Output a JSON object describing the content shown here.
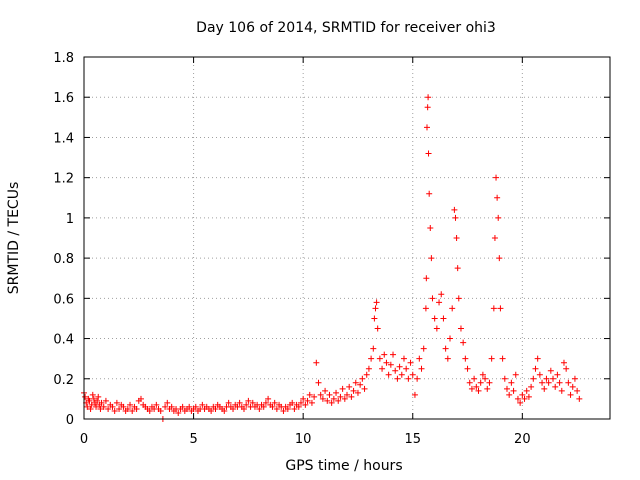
{
  "chart_data": {
    "type": "scatter",
    "title": "Day 106 of 2014, SRMTID for receiver ohi3",
    "xlabel": "GPS time / hours",
    "ylabel": "SRMTID / TECUs",
    "xlim": [
      0,
      24
    ],
    "ylim": [
      0,
      1.8
    ],
    "xticks": [
      0,
      5,
      10,
      15,
      20
    ],
    "xtick_labels": [
      "0",
      "5",
      "10",
      "15",
      "20"
    ],
    "yticks": [
      0,
      0.2,
      0.4,
      0.6,
      0.8,
      1.0,
      1.2,
      1.4,
      1.6,
      1.8
    ],
    "ytick_labels": [
      "0",
      "0.2",
      "0.4",
      "0.6",
      "0.8",
      "1",
      "1.2",
      "1.4",
      "1.6",
      "1.8"
    ],
    "grid": true,
    "marker": "+",
    "series": [
      {
        "name": "SRMTID",
        "color": "#ff0000",
        "points": [
          [
            0.0,
            0.13
          ],
          [
            0.05,
            0.11
          ],
          [
            0.1,
            0.08
          ],
          [
            0.15,
            0.06
          ],
          [
            0.2,
            0.1
          ],
          [
            0.25,
            0.09
          ],
          [
            0.3,
            0.05
          ],
          [
            0.35,
            0.07
          ],
          [
            0.4,
            0.12
          ],
          [
            0.45,
            0.1
          ],
          [
            0.5,
            0.08
          ],
          [
            0.55,
            0.06
          ],
          [
            0.6,
            0.09
          ],
          [
            0.65,
            0.11
          ],
          [
            0.7,
            0.07
          ],
          [
            0.75,
            0.05
          ],
          [
            0.8,
            0.08
          ],
          [
            0.9,
            0.06
          ],
          [
            1.0,
            0.09
          ],
          [
            1.1,
            0.05
          ],
          [
            1.2,
            0.07
          ],
          [
            1.3,
            0.06
          ],
          [
            1.4,
            0.04
          ],
          [
            1.5,
            0.08
          ],
          [
            1.6,
            0.05
          ],
          [
            1.7,
            0.07
          ],
          [
            1.8,
            0.06
          ],
          [
            1.9,
            0.04
          ],
          [
            2.0,
            0.05
          ],
          [
            2.1,
            0.07
          ],
          [
            2.2,
            0.04
          ],
          [
            2.3,
            0.06
          ],
          [
            2.4,
            0.05
          ],
          [
            2.5,
            0.09
          ],
          [
            2.6,
            0.1
          ],
          [
            2.7,
            0.07
          ],
          [
            2.8,
            0.06
          ],
          [
            2.9,
            0.05
          ],
          [
            3.0,
            0.04
          ],
          [
            3.1,
            0.06
          ],
          [
            3.2,
            0.05
          ],
          [
            3.3,
            0.07
          ],
          [
            3.4,
            0.05
          ],
          [
            3.5,
            0.04
          ],
          [
            3.6,
            0.0
          ],
          [
            3.7,
            0.06
          ],
          [
            3.8,
            0.08
          ],
          [
            3.9,
            0.05
          ],
          [
            4.0,
            0.06
          ],
          [
            4.1,
            0.04
          ],
          [
            4.2,
            0.05
          ],
          [
            4.3,
            0.03
          ],
          [
            4.4,
            0.05
          ],
          [
            4.5,
            0.06
          ],
          [
            4.6,
            0.04
          ],
          [
            4.7,
            0.05
          ],
          [
            4.8,
            0.06
          ],
          [
            4.9,
            0.04
          ],
          [
            5.0,
            0.05
          ],
          [
            5.1,
            0.06
          ],
          [
            5.2,
            0.04
          ],
          [
            5.3,
            0.05
          ],
          [
            5.4,
            0.07
          ],
          [
            5.5,
            0.05
          ],
          [
            5.6,
            0.06
          ],
          [
            5.7,
            0.05
          ],
          [
            5.8,
            0.04
          ],
          [
            5.9,
            0.06
          ],
          [
            6.0,
            0.05
          ],
          [
            6.1,
            0.07
          ],
          [
            6.2,
            0.06
          ],
          [
            6.3,
            0.05
          ],
          [
            6.4,
            0.04
          ],
          [
            6.5,
            0.06
          ],
          [
            6.6,
            0.08
          ],
          [
            6.7,
            0.06
          ],
          [
            6.8,
            0.05
          ],
          [
            6.9,
            0.07
          ],
          [
            7.0,
            0.06
          ],
          [
            7.1,
            0.08
          ],
          [
            7.2,
            0.06
          ],
          [
            7.3,
            0.05
          ],
          [
            7.4,
            0.07
          ],
          [
            7.5,
            0.09
          ],
          [
            7.6,
            0.06
          ],
          [
            7.7,
            0.08
          ],
          [
            7.8,
            0.06
          ],
          [
            7.9,
            0.07
          ],
          [
            8.0,
            0.05
          ],
          [
            8.1,
            0.07
          ],
          [
            8.2,
            0.06
          ],
          [
            8.3,
            0.08
          ],
          [
            8.4,
            0.1
          ],
          [
            8.5,
            0.07
          ],
          [
            8.6,
            0.06
          ],
          [
            8.7,
            0.08
          ],
          [
            8.8,
            0.05
          ],
          [
            8.9,
            0.07
          ],
          [
            9.0,
            0.06
          ],
          [
            9.1,
            0.04
          ],
          [
            9.2,
            0.06
          ],
          [
            9.3,
            0.05
          ],
          [
            9.4,
            0.07
          ],
          [
            9.5,
            0.08
          ],
          [
            9.6,
            0.05
          ],
          [
            9.7,
            0.07
          ],
          [
            9.8,
            0.06
          ],
          [
            9.9,
            0.08
          ],
          [
            10.0,
            0.1
          ],
          [
            10.1,
            0.07
          ],
          [
            10.2,
            0.09
          ],
          [
            10.3,
            0.12
          ],
          [
            10.4,
            0.08
          ],
          [
            10.5,
            0.11
          ],
          [
            10.6,
            0.28
          ],
          [
            10.7,
            0.18
          ],
          [
            10.8,
            0.12
          ],
          [
            10.9,
            0.1
          ],
          [
            11.0,
            0.14
          ],
          [
            11.1,
            0.09
          ],
          [
            11.2,
            0.12
          ],
          [
            11.3,
            0.08
          ],
          [
            11.4,
            0.1
          ],
          [
            11.5,
            0.13
          ],
          [
            11.6,
            0.09
          ],
          [
            11.7,
            0.11
          ],
          [
            11.8,
            0.15
          ],
          [
            11.9,
            0.1
          ],
          [
            12.0,
            0.12
          ],
          [
            12.1,
            0.16
          ],
          [
            12.2,
            0.11
          ],
          [
            12.3,
            0.14
          ],
          [
            12.4,
            0.18
          ],
          [
            12.5,
            0.13
          ],
          [
            12.6,
            0.17
          ],
          [
            12.7,
            0.2
          ],
          [
            12.8,
            0.15
          ],
          [
            12.9,
            0.22
          ],
          [
            13.0,
            0.25
          ],
          [
            13.1,
            0.3
          ],
          [
            13.2,
            0.35
          ],
          [
            13.25,
            0.5
          ],
          [
            13.3,
            0.55
          ],
          [
            13.35,
            0.58
          ],
          [
            13.4,
            0.45
          ],
          [
            13.5,
            0.3
          ],
          [
            13.6,
            0.25
          ],
          [
            13.7,
            0.32
          ],
          [
            13.8,
            0.28
          ],
          [
            13.9,
            0.22
          ],
          [
            14.0,
            0.27
          ],
          [
            14.1,
            0.32
          ],
          [
            14.2,
            0.24
          ],
          [
            14.3,
            0.2
          ],
          [
            14.4,
            0.26
          ],
          [
            14.5,
            0.22
          ],
          [
            14.6,
            0.3
          ],
          [
            14.7,
            0.25
          ],
          [
            14.8,
            0.2
          ],
          [
            14.9,
            0.28
          ],
          [
            15.0,
            0.22
          ],
          [
            15.1,
            0.12
          ],
          [
            15.2,
            0.2
          ],
          [
            15.3,
            0.3
          ],
          [
            15.4,
            0.25
          ],
          [
            15.5,
            0.35
          ],
          [
            15.6,
            0.55
          ],
          [
            15.62,
            0.7
          ],
          [
            15.65,
            1.45
          ],
          [
            15.68,
            1.55
          ],
          [
            15.7,
            1.6
          ],
          [
            15.72,
            1.32
          ],
          [
            15.75,
            1.12
          ],
          [
            15.8,
            0.95
          ],
          [
            15.85,
            0.8
          ],
          [
            15.9,
            0.6
          ],
          [
            16.0,
            0.5
          ],
          [
            16.1,
            0.45
          ],
          [
            16.2,
            0.58
          ],
          [
            16.3,
            0.62
          ],
          [
            16.4,
            0.5
          ],
          [
            16.5,
            0.35
          ],
          [
            16.6,
            0.3
          ],
          [
            16.7,
            0.4
          ],
          [
            16.8,
            0.55
          ],
          [
            16.9,
            1.04
          ],
          [
            16.95,
            1.0
          ],
          [
            17.0,
            0.9
          ],
          [
            17.05,
            0.75
          ],
          [
            17.1,
            0.6
          ],
          [
            17.2,
            0.45
          ],
          [
            17.3,
            0.38
          ],
          [
            17.4,
            0.3
          ],
          [
            17.5,
            0.25
          ],
          [
            17.6,
            0.18
          ],
          [
            17.7,
            0.15
          ],
          [
            17.8,
            0.2
          ],
          [
            17.9,
            0.16
          ],
          [
            18.0,
            0.14
          ],
          [
            18.1,
            0.18
          ],
          [
            18.2,
            0.22
          ],
          [
            18.3,
            0.2
          ],
          [
            18.4,
            0.15
          ],
          [
            18.5,
            0.18
          ],
          [
            18.6,
            0.3
          ],
          [
            18.7,
            0.55
          ],
          [
            18.75,
            0.9
          ],
          [
            18.8,
            1.2
          ],
          [
            18.85,
            1.1
          ],
          [
            18.9,
            1.0
          ],
          [
            18.95,
            0.8
          ],
          [
            19.0,
            0.55
          ],
          [
            19.1,
            0.3
          ],
          [
            19.2,
            0.2
          ],
          [
            19.3,
            0.15
          ],
          [
            19.4,
            0.12
          ],
          [
            19.5,
            0.18
          ],
          [
            19.6,
            0.14
          ],
          [
            19.7,
            0.22
          ],
          [
            19.8,
            0.1
          ],
          [
            19.9,
            0.08
          ],
          [
            20.0,
            0.12
          ],
          [
            20.1,
            0.1
          ],
          [
            20.2,
            0.14
          ],
          [
            20.3,
            0.11
          ],
          [
            20.4,
            0.16
          ],
          [
            20.5,
            0.2
          ],
          [
            20.6,
            0.25
          ],
          [
            20.7,
            0.3
          ],
          [
            20.8,
            0.22
          ],
          [
            20.9,
            0.18
          ],
          [
            21.0,
            0.15
          ],
          [
            21.1,
            0.2
          ],
          [
            21.2,
            0.18
          ],
          [
            21.3,
            0.24
          ],
          [
            21.4,
            0.2
          ],
          [
            21.5,
            0.16
          ],
          [
            21.6,
            0.22
          ],
          [
            21.7,
            0.18
          ],
          [
            21.8,
            0.14
          ],
          [
            21.9,
            0.28
          ],
          [
            22.0,
            0.25
          ],
          [
            22.1,
            0.18
          ],
          [
            22.2,
            0.12
          ],
          [
            22.3,
            0.16
          ],
          [
            22.4,
            0.2
          ],
          [
            22.5,
            0.14
          ],
          [
            22.6,
            0.1
          ]
        ]
      }
    ]
  }
}
